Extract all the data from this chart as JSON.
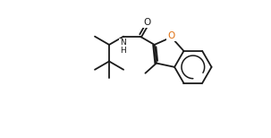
{
  "bg_color": "#ffffff",
  "line_color": "#1a1a1a",
  "o_color": "#e07010",
  "figsize": [
    3.03,
    1.54
  ],
  "dpi": 100,
  "lw": 1.3,
  "xlim": [
    0,
    10.5
  ],
  "ylim": [
    0,
    7.0
  ]
}
